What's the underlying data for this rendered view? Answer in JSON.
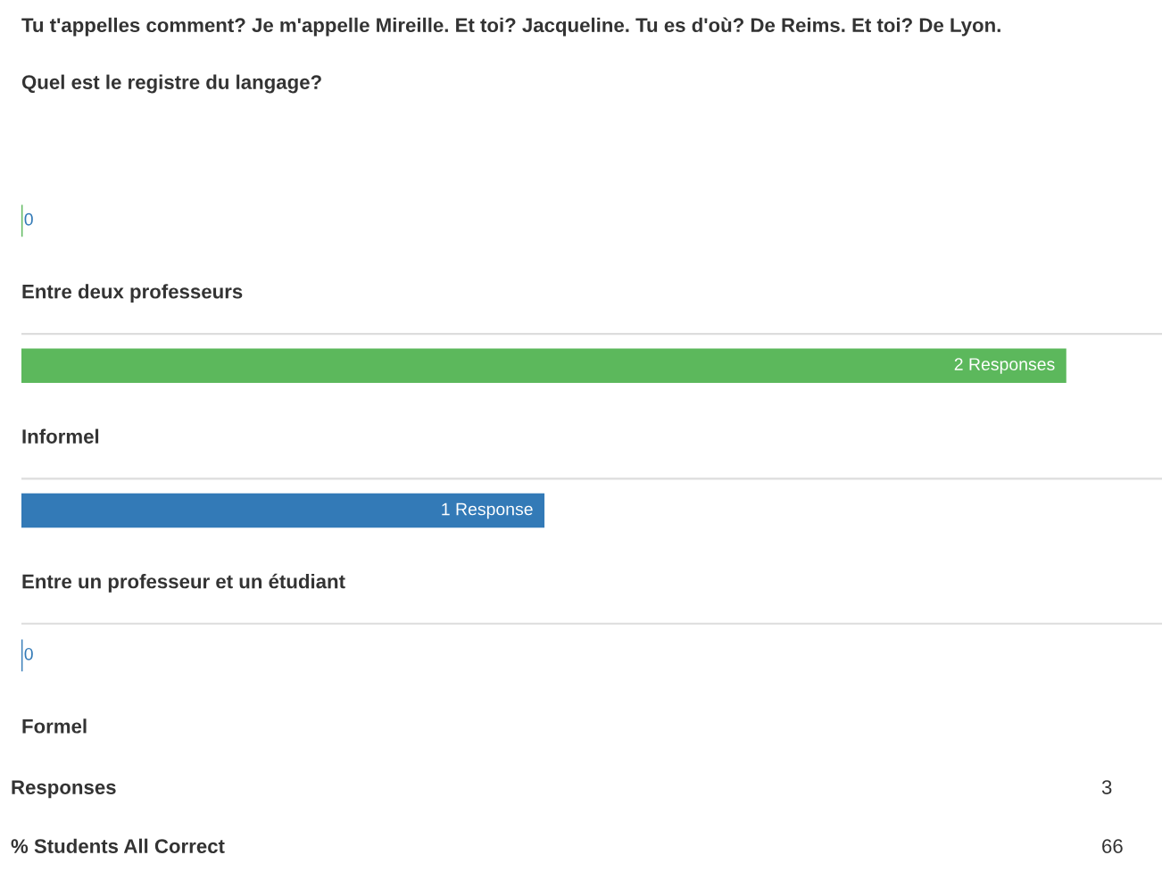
{
  "chart_data": {
    "type": "bar",
    "orientation": "horizontal",
    "title": "Tu t'appelles comment? Je m'appelle Mireille. Et toi? Jacqueline. Tu es d'où? De Reims. Et toi? De Lyon.",
    "subtitle": "Quel est le registre du langage?",
    "categories": [
      "Entre deux professeurs",
      "Informel",
      "Entre un professeur et un étudiant",
      "Formel"
    ],
    "values": [
      0,
      2,
      1,
      0
    ],
    "colors": [
      "#5cb85c",
      "#5cb85c",
      "#337ab7",
      "#337ab7"
    ],
    "value_labels": [
      "0",
      "2 Responses",
      "1 Response",
      "0"
    ],
    "annotations": [
      "Responses",
      "3",
      "% Students All Correct",
      "66"
    ]
  }
}
